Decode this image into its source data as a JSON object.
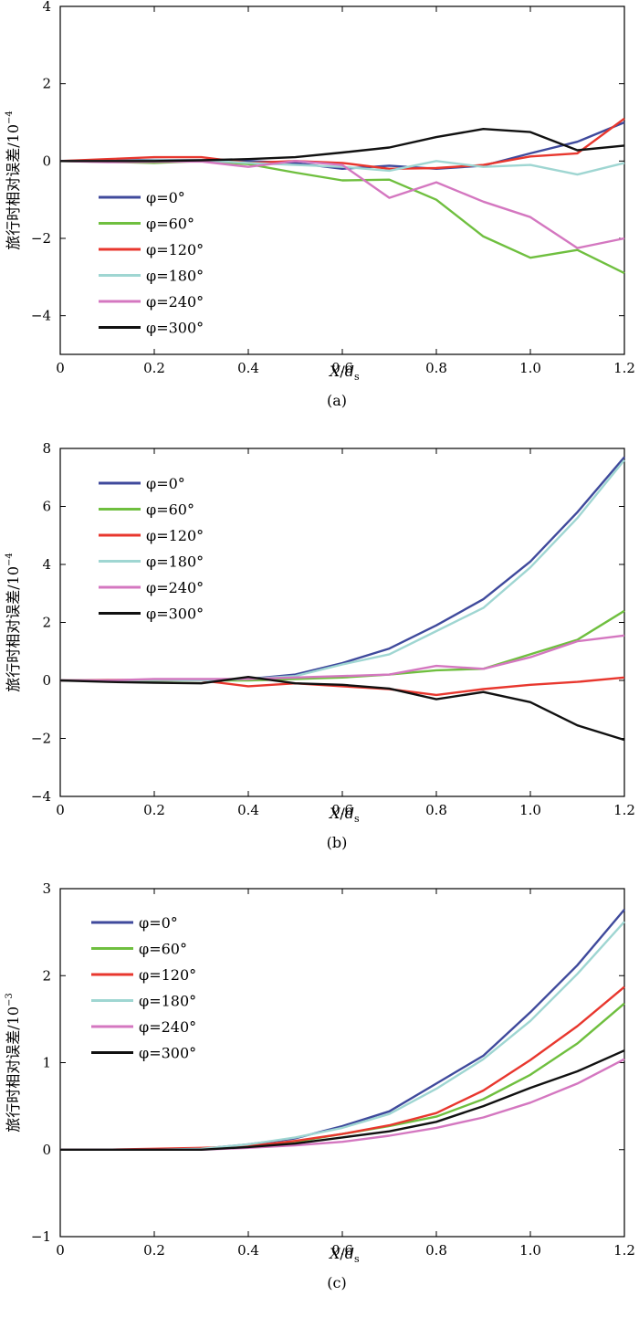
{
  "chart_data": [
    {
      "type": "line",
      "panel": "(a)",
      "caption": "(a)",
      "xlabel_main": "X",
      "xlabel_sep": "/",
      "xlabel_d": "d",
      "xlabel_sub": "s",
      "ylabel": "旅行时相对误差/10",
      "ylabel_exp": "−4",
      "xlim": [
        0,
        1.2
      ],
      "ylim": [
        -5,
        4
      ],
      "xticks": [
        0,
        0.2,
        0.4,
        0.6,
        0.8,
        1.0,
        1.2
      ],
      "xtick_labels": [
        "0",
        "0.2",
        "0.4",
        "0.6",
        "0.8",
        "1.0",
        "1.2"
      ],
      "yticks": [
        -4,
        -2,
        0,
        2,
        4
      ],
      "ytick_labels": [
        "−4",
        "−2",
        "0",
        "2",
        "4"
      ],
      "x": [
        0,
        0.1,
        0.2,
        0.3,
        0.4,
        0.5,
        0.6,
        0.7,
        0.8,
        0.9,
        1.0,
        1.1,
        1.2
      ],
      "series": [
        {
          "name": "φ=0°",
          "color": "#3f4a9c",
          "values": [
            0,
            0.02,
            0.03,
            0.02,
            0.0,
            -0.05,
            -0.2,
            -0.12,
            -0.2,
            -0.12,
            0.2,
            0.5,
            1.0
          ]
        },
        {
          "name": "φ=60°",
          "color": "#6fbf3f",
          "values": [
            0,
            -0.02,
            -0.05,
            0.0,
            -0.08,
            -0.3,
            -0.5,
            -0.48,
            -1.0,
            -1.95,
            -2.5,
            -2.3,
            -2.9
          ]
        },
        {
          "name": "φ=120°",
          "color": "#e8372e",
          "values": [
            0,
            0.05,
            0.1,
            0.1,
            -0.05,
            0.0,
            -0.05,
            -0.2,
            -0.18,
            -0.1,
            0.12,
            0.2,
            1.1
          ]
        },
        {
          "name": "φ=180°",
          "color": "#9fd6d2",
          "values": [
            0,
            0.0,
            0.02,
            0.02,
            -0.05,
            -0.1,
            -0.15,
            -0.25,
            0.0,
            -0.15,
            -0.1,
            -0.35,
            -0.05
          ]
        },
        {
          "name": "φ=240°",
          "color": "#d477c0",
          "values": [
            0,
            -0.03,
            -0.02,
            -0.01,
            -0.15,
            0.0,
            -0.1,
            -0.95,
            -0.55,
            -1.05,
            -1.45,
            -2.25,
            -2.0
          ]
        },
        {
          "name": "φ=300°",
          "color": "#111111",
          "values": [
            0,
            0.0,
            0.0,
            0.02,
            0.05,
            0.1,
            0.22,
            0.35,
            0.62,
            0.83,
            0.75,
            0.28,
            0.4
          ]
        }
      ]
    },
    {
      "type": "line",
      "panel": "(b)",
      "caption": "(b)",
      "xlabel_main": "X",
      "xlabel_sep": "/",
      "xlabel_d": "d",
      "xlabel_sub": "s",
      "ylabel": "旅行时相对误差/10",
      "ylabel_exp": "−4",
      "xlim": [
        0,
        1.2
      ],
      "ylim": [
        -4,
        8
      ],
      "xticks": [
        0,
        0.2,
        0.4,
        0.6,
        0.8,
        1.0,
        1.2
      ],
      "xtick_labels": [
        "0",
        "0.2",
        "0.4",
        "0.6",
        "0.8",
        "1.0",
        "1.2"
      ],
      "yticks": [
        -4,
        -2,
        0,
        2,
        4,
        6,
        8
      ],
      "ytick_labels": [
        "−4",
        "−2",
        "0",
        "2",
        "4",
        "6",
        "8"
      ],
      "x": [
        0,
        0.1,
        0.2,
        0.3,
        0.4,
        0.5,
        0.6,
        0.7,
        0.8,
        0.9,
        1.0,
        1.1,
        1.2
      ],
      "series": [
        {
          "name": "φ=0°",
          "color": "#3f4a9c",
          "values": [
            0,
            0.0,
            0.0,
            0.02,
            0.05,
            0.2,
            0.6,
            1.1,
            1.9,
            2.8,
            4.1,
            5.8,
            7.7
          ]
        },
        {
          "name": "φ=60°",
          "color": "#6fbf3f",
          "values": [
            0,
            0.0,
            0.0,
            0.0,
            0.0,
            0.05,
            0.1,
            0.2,
            0.35,
            0.4,
            0.9,
            1.4,
            2.4
          ]
        },
        {
          "name": "φ=120°",
          "color": "#e8372e",
          "values": [
            0,
            0.02,
            0.02,
            0.0,
            -0.2,
            -0.1,
            -0.2,
            -0.3,
            -0.5,
            -0.3,
            -0.15,
            -0.05,
            0.1
          ]
        },
        {
          "name": "φ=180°",
          "color": "#9fd6d2",
          "values": [
            0,
            0.0,
            0.02,
            0.0,
            0.05,
            0.15,
            0.55,
            0.9,
            1.7,
            2.5,
            3.9,
            5.6,
            7.6
          ]
        },
        {
          "name": "φ=240°",
          "color": "#d477c0",
          "values": [
            0,
            0.0,
            0.05,
            0.05,
            0.05,
            0.1,
            0.15,
            0.2,
            0.5,
            0.4,
            0.8,
            1.35,
            1.55
          ]
        },
        {
          "name": "φ=300°",
          "color": "#111111",
          "values": [
            0,
            -0.05,
            -0.08,
            -0.1,
            0.12,
            -0.1,
            -0.15,
            -0.28,
            -0.65,
            -0.4,
            -0.75,
            -1.55,
            -2.05
          ]
        }
      ]
    },
    {
      "type": "line",
      "panel": "(c)",
      "caption": "(c)",
      "xlabel_main": "X",
      "xlabel_sep": "/",
      "xlabel_d": "d",
      "xlabel_sub": "s",
      "ylabel": "旅行时相对误差/10",
      "ylabel_exp": "−3",
      "xlim": [
        0,
        1.2
      ],
      "ylim": [
        -1,
        3
      ],
      "xticks": [
        0,
        0.2,
        0.4,
        0.6,
        0.8,
        1.0,
        1.2
      ],
      "xtick_labels": [
        "0",
        "0.2",
        "0.4",
        "0.6",
        "0.8",
        "1.0",
        "1.2"
      ],
      "yticks": [
        -1,
        0,
        1,
        2,
        3
      ],
      "ytick_labels": [
        "−1",
        "0",
        "1",
        "2",
        "3"
      ],
      "x": [
        0,
        0.1,
        0.2,
        0.3,
        0.4,
        0.5,
        0.6,
        0.7,
        0.8,
        0.9,
        1.0,
        1.1,
        1.2
      ],
      "series": [
        {
          "name": "φ=0°",
          "color": "#3f4a9c",
          "values": [
            0,
            0.0,
            0.0,
            0.01,
            0.06,
            0.13,
            0.27,
            0.44,
            0.76,
            1.08,
            1.58,
            2.12,
            2.76
          ]
        },
        {
          "name": "φ=60°",
          "color": "#6fbf3f",
          "values": [
            0,
            0.0,
            0.0,
            0.01,
            0.04,
            0.09,
            0.18,
            0.27,
            0.38,
            0.58,
            0.86,
            1.22,
            1.68
          ]
        },
        {
          "name": "φ=120°",
          "color": "#e8372e",
          "values": [
            0,
            0.0,
            0.01,
            0.02,
            0.04,
            0.1,
            0.18,
            0.28,
            0.42,
            0.68,
            1.03,
            1.42,
            1.87
          ]
        },
        {
          "name": "φ=180°",
          "color": "#9fd6d2",
          "values": [
            0,
            0.0,
            0.0,
            0.01,
            0.06,
            0.14,
            0.25,
            0.41,
            0.7,
            1.04,
            1.48,
            2.02,
            2.62
          ]
        },
        {
          "name": "φ=240°",
          "color": "#d477c0",
          "values": [
            0,
            0.0,
            0.0,
            0.0,
            0.02,
            0.05,
            0.09,
            0.16,
            0.25,
            0.37,
            0.54,
            0.76,
            1.04
          ]
        },
        {
          "name": "φ=300°",
          "color": "#111111",
          "values": [
            0,
            0.0,
            0.0,
            0.0,
            0.03,
            0.07,
            0.14,
            0.21,
            0.32,
            0.5,
            0.71,
            0.9,
            1.14
          ]
        }
      ]
    }
  ]
}
